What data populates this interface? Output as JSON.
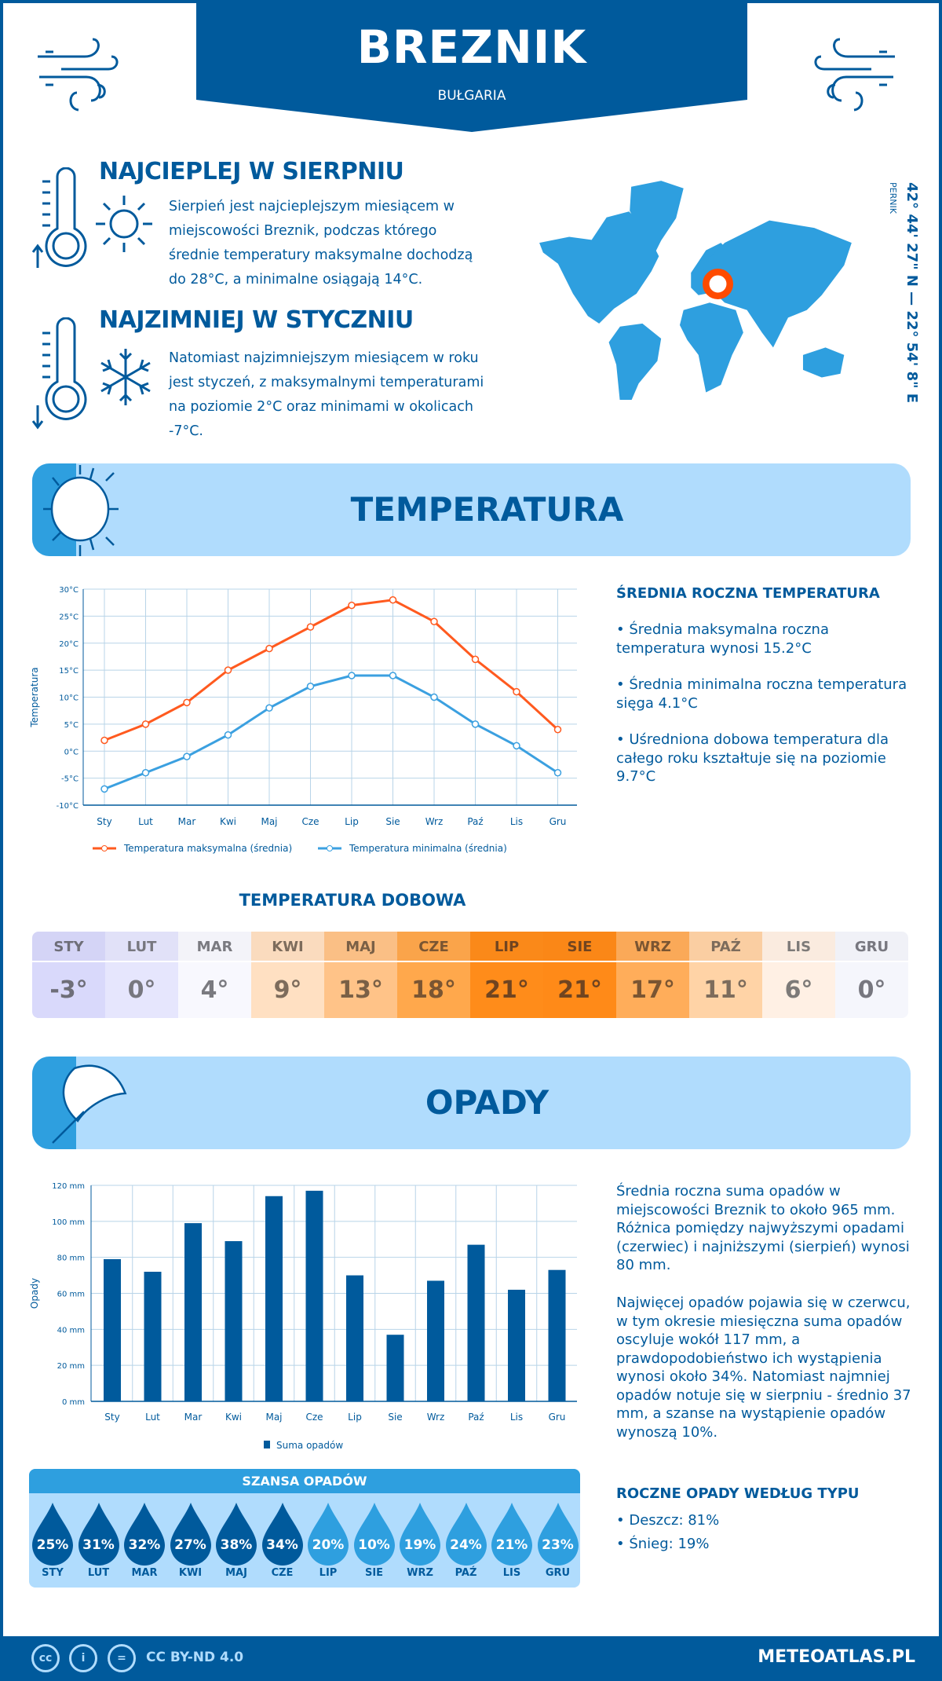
{
  "header": {
    "city": "BREZNIK",
    "country": "BUŁGARIA"
  },
  "warmest": {
    "title": "NAJCIEPLEJ W SIERPNIU",
    "text": "Sierpień jest najcieplejszym miesiącem w miejscowości Breznik, podczas którego średnie temperatury maksymalne dochodzą do 28°C, a minimalne osiągają 14°C."
  },
  "coldest": {
    "title": "NAJZIMNIEJ W STYCZNIU",
    "text": "Natomiast najzimniejszym miesiącem w roku jest styczeń, z maksymalnymi temperaturami na poziomie 2°C oraz minimami w okolicach -7°C."
  },
  "map": {
    "region": "PERNIK",
    "coordinates": "42° 44' 27\" N — 22° 54' 8\" E",
    "marker_color": "#ff4b00"
  },
  "temperature": {
    "section_title": "TEMPERATURA",
    "summary_title": "ŚREDNIA ROCZNA TEMPERATURA",
    "bullets": [
      "• Średnia maksymalna roczna temperatura wynosi 15.2°C",
      "• Średnia minimalna roczna temperatura sięga 4.1°C",
      "• Uśredniona dobowa temperatura dla całego roku kształtuje się na poziomie 9.7°C"
    ],
    "daily_title": "TEMPERATURA DOBOWA",
    "daily": [
      {
        "month": "STY",
        "value": "-3°",
        "bg": "#d9d9fb",
        "color": "#6e6e78"
      },
      {
        "month": "LUT",
        "value": "0°",
        "bg": "#e6e6fd",
        "color": "#77777f"
      },
      {
        "month": "MAR",
        "value": "4°",
        "bg": "#f8f8fe",
        "color": "#7a7a80"
      },
      {
        "month": "KWI",
        "value": "9°",
        "bg": "#ffe0c2",
        "color": "#7d6c5c"
      },
      {
        "month": "MAJ",
        "value": "13°",
        "bg": "#ffc388",
        "color": "#7a6046"
      },
      {
        "month": "CZE",
        "value": "18°",
        "bg": "#ffa84c",
        "color": "#7a5532"
      },
      {
        "month": "LIP",
        "value": "21°",
        "bg": "#ff8c1a",
        "color": "#704420"
      },
      {
        "month": "SIE",
        "value": "21°",
        "bg": "#ff8a18",
        "color": "#704420"
      },
      {
        "month": "WRZ",
        "value": "17°",
        "bg": "#ffad5a",
        "color": "#7a5532"
      },
      {
        "month": "PAŹ",
        "value": "11°",
        "bg": "#ffd3a6",
        "color": "#7d6c5c"
      },
      {
        "month": "LIS",
        "value": "6°",
        "bg": "#fff0e4",
        "color": "#7d7a78"
      },
      {
        "month": "GRU",
        "value": "0°",
        "bg": "#f5f6fc",
        "color": "#77777f"
      }
    ]
  },
  "precipitation": {
    "section_title": "OPADY",
    "text1": "Średnia roczna suma opadów w miejscowości Breznik to około 965 mm. Różnica pomiędzy najwyższymi opadami (czerwiec) i najniższymi (sierpień) wynosi 80 mm.",
    "text2": "Najwięcej opadów pojawia się w czerwcu, w tym okresie miesięczna suma opadów oscyluje wokół 117 mm, a prawdopodobieństwo ich wystąpienia wynosi około 34%. Natomiast najmniej opadów notuje się w sierpniu - średnio 37 mm, a szanse na wystąpienie opadów wynoszą 10%.",
    "type_title": "ROCZNE OPADY WEDŁUG TYPU",
    "types": [
      "• Deszcz: 81%",
      "• Śnieg: 19%"
    ],
    "chance_title": "SZANSA OPADÓW",
    "chance": [
      {
        "month": "STY",
        "value": "25%",
        "dark": true
      },
      {
        "month": "LUT",
        "value": "31%",
        "dark": true
      },
      {
        "month": "MAR",
        "value": "32%",
        "dark": true
      },
      {
        "month": "KWI",
        "value": "27%",
        "dark": true
      },
      {
        "month": "MAJ",
        "value": "38%",
        "dark": true
      },
      {
        "month": "CZE",
        "value": "34%",
        "dark": true
      },
      {
        "month": "LIP",
        "value": "20%",
        "dark": false
      },
      {
        "month": "SIE",
        "value": "10%",
        "dark": false
      },
      {
        "month": "WRZ",
        "value": "19%",
        "dark": false
      },
      {
        "month": "PAŹ",
        "value": "24%",
        "dark": false
      },
      {
        "month": "LIS",
        "value": "21%",
        "dark": false
      },
      {
        "month": "GRU",
        "value": "23%",
        "dark": false
      }
    ]
  },
  "footer": {
    "license": "CC BY-ND 4.0",
    "site": "METEOATLAS.PL"
  },
  "colors": {
    "dark_blue": "#005a9c",
    "mid_blue": "#2e9fdf",
    "light_blue": "#b0dcfd",
    "max_line": "#ff5a1f",
    "min_line": "#3ba0e0"
  },
  "chart_data": [
    {
      "type": "line",
      "categories": [
        "Sty",
        "Lut",
        "Mar",
        "Kwi",
        "Maj",
        "Cze",
        "Lip",
        "Sie",
        "Wrz",
        "Paź",
        "Lis",
        "Gru"
      ],
      "series": [
        {
          "name": "Temperatura maksymalna (średnia)",
          "values": [
            2,
            5,
            9,
            15,
            19,
            23,
            27,
            28,
            24,
            17,
            11,
            4
          ]
        },
        {
          "name": "Temperatura minimalna (średnia)",
          "values": [
            -7,
            -4,
            -1,
            3,
            8,
            12,
            14,
            14,
            10,
            5,
            1,
            -4
          ]
        }
      ],
      "ylabel": "Temperatura",
      "ylim": [
        -10,
        30
      ],
      "yticks": [
        "-10°C",
        "-5°C",
        "0°C",
        "5°C",
        "10°C",
        "15°C",
        "20°C",
        "25°C",
        "30°C"
      ],
      "grid": true,
      "legend": "bottom"
    },
    {
      "type": "bar",
      "categories": [
        "Sty",
        "Lut",
        "Mar",
        "Kwi",
        "Maj",
        "Cze",
        "Lip",
        "Sie",
        "Wrz",
        "Paź",
        "Lis",
        "Gru"
      ],
      "series": [
        {
          "name": "Suma opadów",
          "values": [
            79,
            72,
            99,
            89,
            114,
            117,
            70,
            37,
            67,
            87,
            62,
            73
          ]
        }
      ],
      "ylabel": "Opady",
      "ylim": [
        0,
        120
      ],
      "yticks": [
        "0 mm",
        "20 mm",
        "40 mm",
        "60 mm",
        "80 mm",
        "100 mm",
        "120 mm"
      ],
      "grid": true,
      "legend": "bottom"
    }
  ]
}
